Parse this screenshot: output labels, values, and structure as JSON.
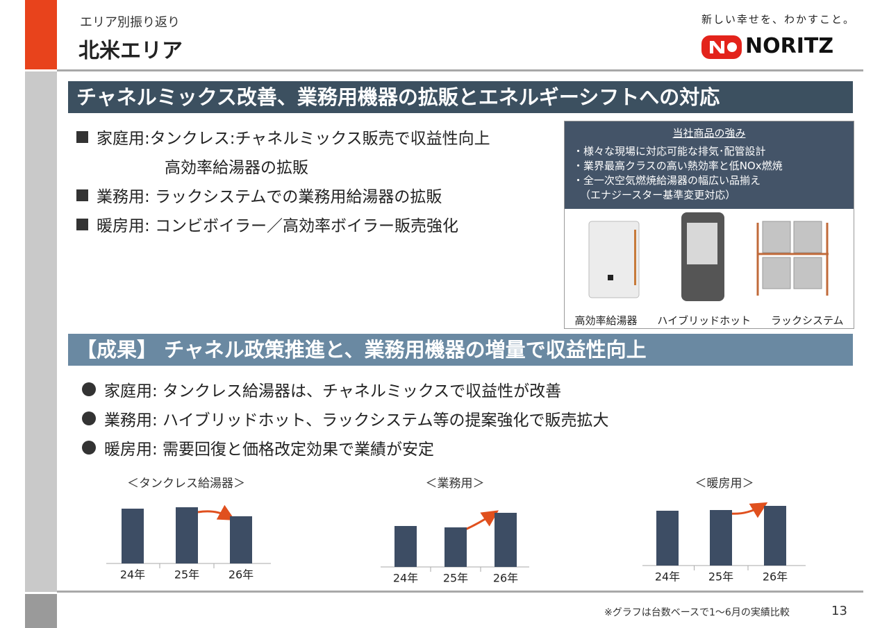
{
  "header": {
    "subtitle": "エリア別振り返り",
    "title": "北米エリア",
    "tagline": "新しい幸せを、わかすこと。",
    "logo": "NORITZ"
  },
  "banner1": "チャネルミックス改善、業務用機器の拡販とエネルギーシフトへの対応",
  "initiatives": [
    [
      "家庭用:タンクレス:チャネルミックス販売で収益性向上",
      "高効率給湯器の拡販"
    ],
    [
      "業務用: ラックシステムでの業務用給湯器の拡販"
    ],
    [
      "暖房用: コンビボイラー／高効率ボイラー販売強化"
    ]
  ],
  "products": {
    "title": "当社商品の強み",
    "points": [
      "・様々な現場に対応可能な排気･配管設計",
      "・業界最高クラスの高い熱効率と低NOx燃焼",
      "・全一次空気燃焼給湯器の幅広い品揃え",
      "（エナジースター基準変更対応）"
    ],
    "items": [
      "高効率給湯器",
      "ハイブリッドホット",
      "ラックシステム"
    ]
  },
  "banner2": "【成果】 チャネル政策推進と、業務用機器の増量で収益性向上",
  "results": [
    "家庭用: タンクレス給湯器は、チャネルミックスで収益性が改善",
    "業務用: ハイブリッドホット、ラックシステム等の提案強化で販売拡大",
    "暖房用: 需要回復と価格改定効果で業績が安定"
  ],
  "chart_data": [
    {
      "type": "bar",
      "title": "＜タンクレス給湯器＞",
      "categories": [
        "24年",
        "25年",
        "26年"
      ],
      "values": [
        79,
        81,
        68
      ],
      "color": "#3d4d64",
      "ylim": [
        0,
        100
      ]
    },
    {
      "type": "bar",
      "title": "＜業務用＞",
      "categories": [
        "24年",
        "25年",
        "26年"
      ],
      "values": [
        59,
        57,
        78
      ],
      "color": "#3d4d64",
      "ylim": [
        0,
        100
      ]
    },
    {
      "type": "bar",
      "title": "＜暖房用＞",
      "categories": [
        "24年",
        "25年",
        "26年"
      ],
      "values": [
        79,
        80,
        86
      ],
      "color": "#3d4d64",
      "ylim": [
        0,
        100
      ]
    }
  ],
  "footer": {
    "note": "※グラフは台数ベースで1～6月の実績比較",
    "page": "13"
  }
}
